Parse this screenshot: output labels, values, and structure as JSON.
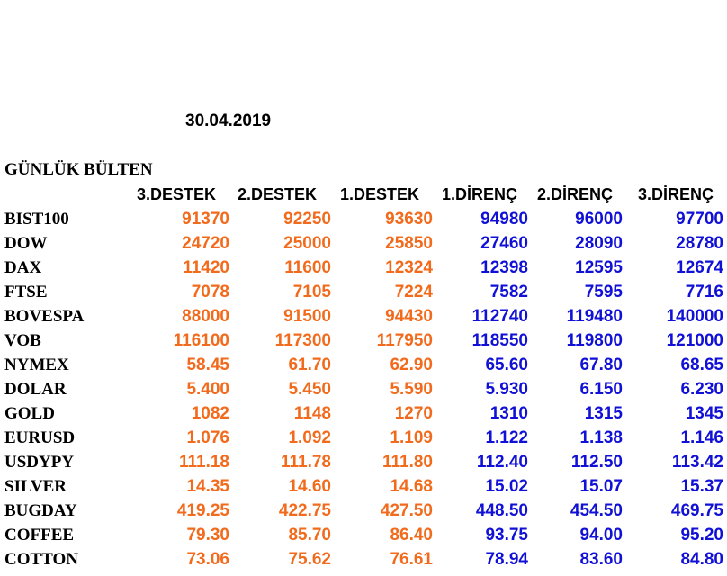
{
  "date": "30.04.2019",
  "title": "GÜNLÜK BÜLTEN",
  "headers": [
    "3.DESTEK",
    "2.DESTEK",
    "1.DESTEK",
    "1.DİRENÇ",
    "2.DİRENÇ",
    "3.DİRENÇ"
  ],
  "colors": {
    "support": "#f26b1d",
    "resistance": "#1010d6",
    "label": "#000000"
  },
  "rows": [
    {
      "name": "BIST100",
      "values": [
        "91370",
        "92250",
        "93630",
        "94980",
        "96000",
        "97700"
      ]
    },
    {
      "name": "DOW",
      "values": [
        "24720",
        "25000",
        "25850",
        "27460",
        "28090",
        "28780"
      ]
    },
    {
      "name": "DAX",
      "values": [
        "11420",
        "11600",
        "12324",
        "12398",
        "12595",
        "12674"
      ]
    },
    {
      "name": "FTSE",
      "values": [
        "7078",
        "7105",
        "7224",
        "7582",
        "7595",
        "7716"
      ]
    },
    {
      "name": "BOVESPA",
      "values": [
        "88000",
        "91500",
        "94430",
        "112740",
        "119480",
        "140000"
      ]
    },
    {
      "name": "VOB",
      "values": [
        "116100",
        "117300",
        "117950",
        "118550",
        "119800",
        "121000"
      ]
    },
    {
      "name": "NYMEX",
      "values": [
        "58.45",
        "61.70",
        "62.90",
        "65.60",
        "67.80",
        "68.65"
      ]
    },
    {
      "name": "DOLAR",
      "values": [
        "5.400",
        "5.450",
        "5.590",
        "5.930",
        "6.150",
        "6.230"
      ]
    },
    {
      "name": "GOLD",
      "values": [
        "1082",
        "1148",
        "1270",
        "1310",
        "1315",
        "1345"
      ]
    },
    {
      "name": "EURUSD",
      "values": [
        "1.076",
        "1.092",
        "1.109",
        "1.122",
        "1.138",
        "1.146"
      ]
    },
    {
      "name": "USDYPY",
      "values": [
        "111.18",
        "111.78",
        "111.80",
        "112.40",
        "112.50",
        "113.42"
      ]
    },
    {
      "name": "SILVER",
      "values": [
        "14.35",
        "14.60",
        "14.68",
        "15.02",
        "15.07",
        "15.37"
      ]
    },
    {
      "name": "BUGDAY",
      "values": [
        "419.25",
        "422.75",
        "427.50",
        "448.50",
        "454.50",
        "469.75"
      ]
    },
    {
      "name": "COFFEE",
      "values": [
        "79.30",
        "85.70",
        "86.40",
        "93.75",
        "94.00",
        "95.20"
      ]
    },
    {
      "name": "COTTON",
      "values": [
        "73.06",
        "75.62",
        "76.61",
        "78.94",
        "83.60",
        "84.80"
      ]
    }
  ]
}
